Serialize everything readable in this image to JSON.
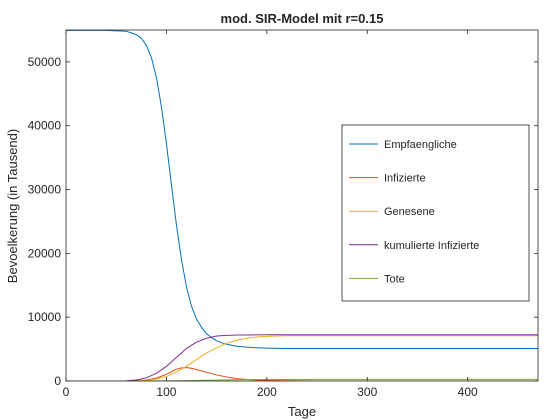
{
  "chart_data": {
    "type": "line",
    "title": "mod. SIR-Model mit r=0.15",
    "xlabel": "Tage",
    "ylabel": "Bevoelkerung (in Tausend)",
    "xlim": [
      0,
      470
    ],
    "ylim": [
      0,
      55000
    ],
    "xticks": [
      0,
      100,
      200,
      300,
      400
    ],
    "yticks": [
      0,
      10000,
      20000,
      30000,
      40000,
      50000
    ],
    "grid": false,
    "legend_position": "right",
    "series": [
      {
        "name": "Empfaengliche",
        "color": "#0072bd",
        "x": [
          0,
          20,
          40,
          60,
          70,
          75,
          80,
          85,
          90,
          95,
          100,
          105,
          110,
          115,
          120,
          125,
          130,
          135,
          140,
          145,
          150,
          155,
          160,
          170,
          180,
          190,
          200,
          220,
          250,
          300,
          400,
          470
        ],
        "y": [
          54950,
          54950,
          54950,
          54800,
          54300,
          53700,
          52600,
          50700,
          47600,
          43000,
          37200,
          30700,
          24400,
          19000,
          14700,
          11700,
          9700,
          8400,
          7400,
          6800,
          6300,
          6000,
          5750,
          5450,
          5300,
          5200,
          5150,
          5100,
          5100,
          5100,
          5100,
          5100
        ]
      },
      {
        "name": "Infizierte",
        "color": "#d95319",
        "x": [
          0,
          60,
          70,
          80,
          90,
          100,
          105,
          110,
          115,
          120,
          125,
          130,
          140,
          150,
          160,
          170,
          180,
          200,
          220,
          250,
          300,
          400,
          470
        ],
        "y": [
          0,
          10,
          40,
          150,
          450,
          1050,
          1450,
          1850,
          2050,
          2100,
          2000,
          1800,
          1350,
          950,
          620,
          380,
          230,
          80,
          30,
          10,
          0,
          0,
          0
        ]
      },
      {
        "name": "Genesene",
        "color": "#edb120",
        "x": [
          0,
          60,
          80,
          90,
          100,
          110,
          120,
          130,
          140,
          150,
          160,
          170,
          180,
          190,
          200,
          220,
          250,
          300,
          400,
          470
        ],
        "y": [
          0,
          10,
          100,
          300,
          700,
          1400,
          2300,
          3400,
          4400,
          5200,
          5900,
          6400,
          6700,
          6900,
          7000,
          7100,
          7100,
          7100,
          7100,
          7100
        ]
      },
      {
        "name": "kumulierte Infizierte",
        "color": "#7e2f8e",
        "x": [
          0,
          60,
          70,
          80,
          90,
          100,
          110,
          120,
          130,
          140,
          150,
          160,
          170,
          180,
          200,
          220,
          250,
          300,
          400,
          470
        ],
        "y": [
          0,
          20,
          150,
          500,
          1200,
          2300,
          3700,
          5100,
          6100,
          6700,
          7050,
          7150,
          7200,
          7200,
          7250,
          7250,
          7250,
          7250,
          7250,
          7250
        ]
      },
      {
        "name": "Tote",
        "color": "#77ac30",
        "x": [
          0,
          60,
          80,
          100,
          120,
          140,
          160,
          180,
          200,
          250,
          300,
          400,
          470
        ],
        "y": [
          0,
          0,
          5,
          20,
          60,
          120,
          180,
          220,
          240,
          250,
          250,
          250,
          250
        ]
      }
    ]
  }
}
